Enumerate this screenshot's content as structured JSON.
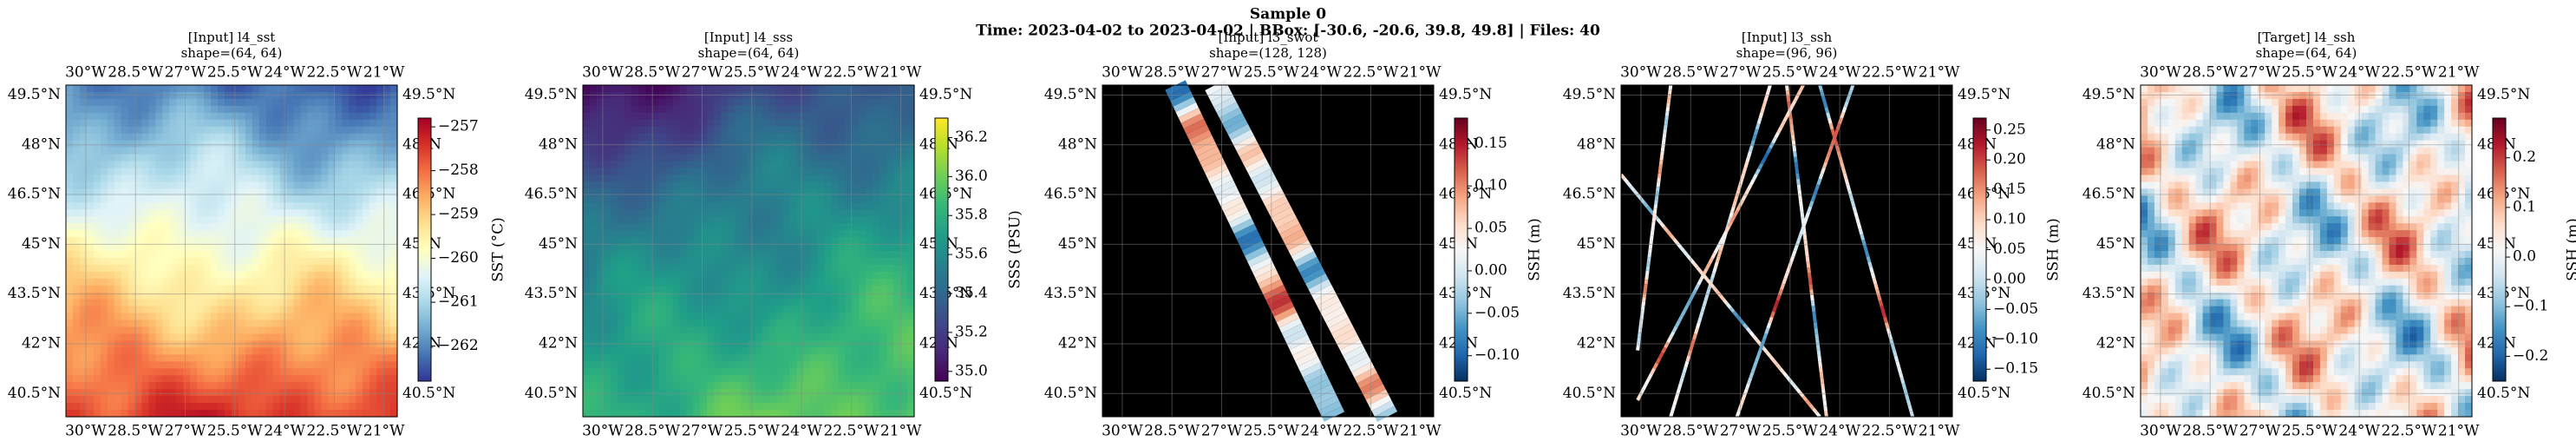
{
  "title": "Sample 0",
  "subtitle": "Time: 2023-04-02 to 2023-04-02 | BBox: [-30.6, -20.6, 39.8, 49.8] | Files: 40",
  "chart_data": [
    {
      "type": "heatmap",
      "title": "[Input] l4_sst",
      "subtitle": "shape=(64, 64)",
      "xlim": [
        -30.6,
        -20.6
      ],
      "ylim": [
        39.8,
        49.8
      ],
      "xticks": [
        {
          "value": -30,
          "label": "30°W"
        },
        {
          "value": -28.5,
          "label": "28.5°W"
        },
        {
          "value": -27,
          "label": "27°W"
        },
        {
          "value": -25.5,
          "label": "25.5°W"
        },
        {
          "value": -24,
          "label": "24°W"
        },
        {
          "value": -22.5,
          "label": "22.5°W"
        },
        {
          "value": -21,
          "label": "21°W"
        }
      ],
      "yticks": [
        {
          "value": 49.5,
          "label": "49.5°N"
        },
        {
          "value": 48,
          "label": "48°N"
        },
        {
          "value": 46.5,
          "label": "46.5°N"
        },
        {
          "value": 45,
          "label": "45°N"
        },
        {
          "value": 43.5,
          "label": "43.5°N"
        },
        {
          "value": 42,
          "label": "42°N"
        },
        {
          "value": 40.5,
          "label": "40.5°N"
        }
      ],
      "grid": true,
      "colorbar": {
        "label": "SST (°C)",
        "lim": [
          -262.8,
          -256.8
        ],
        "ticks": [
          {
            "value": -257,
            "label": "−257"
          },
          {
            "value": -258,
            "label": "−258"
          },
          {
            "value": -259,
            "label": "−259"
          },
          {
            "value": -260,
            "label": "−260"
          },
          {
            "value": -261,
            "label": "−261"
          },
          {
            "value": -262,
            "label": "−262"
          }
        ],
        "colors": [
          "#313695",
          "#4575b4",
          "#74add1",
          "#abd9e9",
          "#e0f3f8",
          "#ffffbf",
          "#fee090",
          "#fdae61",
          "#f46d43",
          "#d73027",
          "#a50026"
        ]
      }
    },
    {
      "type": "heatmap",
      "title": "[Input] l4_sss",
      "subtitle": "shape=(64, 64)",
      "xlim": [
        -30.6,
        -20.6
      ],
      "ylim": [
        39.8,
        49.8
      ],
      "xticks": [
        {
          "value": -30,
          "label": "30°W"
        },
        {
          "value": -28.5,
          "label": "28.5°W"
        },
        {
          "value": -27,
          "label": "27°W"
        },
        {
          "value": -25.5,
          "label": "25.5°W"
        },
        {
          "value": -24,
          "label": "24°W"
        },
        {
          "value": -22.5,
          "label": "22.5°W"
        },
        {
          "value": -21,
          "label": "21°W"
        }
      ],
      "yticks": [
        {
          "value": 49.5,
          "label": "49.5°N"
        },
        {
          "value": 48,
          "label": "48°N"
        },
        {
          "value": 46.5,
          "label": "46.5°N"
        },
        {
          "value": 45,
          "label": "45°N"
        },
        {
          "value": 43.5,
          "label": "43.5°N"
        },
        {
          "value": 42,
          "label": "42°N"
        },
        {
          "value": 40.5,
          "label": "40.5°N"
        }
      ],
      "grid": true,
      "colorbar": {
        "label": "SSS (PSU)",
        "lim": [
          34.95,
          36.3
        ],
        "ticks": [
          {
            "value": 35.0,
            "label": "35.0"
          },
          35.2,
          35.4,
          35.6,
          35.8,
          {
            "value": 36.0,
            "label": "36.0"
          },
          36.2
        ],
        "colors": [
          "#440154",
          "#482878",
          "#3e4989",
          "#31688e",
          "#26828e",
          "#1f9e89",
          "#35b779",
          "#6ece58",
          "#b5de2b",
          "#fde725"
        ]
      }
    },
    {
      "type": "heatmap",
      "title": "[Input] l3_swot",
      "subtitle": "shape=(128, 128)",
      "xlim": [
        -30.6,
        -20.6
      ],
      "ylim": [
        39.8,
        49.8
      ],
      "xticks": [
        {
          "value": -30,
          "label": "30°W"
        },
        {
          "value": -28.5,
          "label": "28.5°W"
        },
        {
          "value": -27,
          "label": "27°W"
        },
        {
          "value": -25.5,
          "label": "25.5°W"
        },
        {
          "value": -24,
          "label": "24°W"
        },
        {
          "value": -22.5,
          "label": "22.5°W"
        },
        {
          "value": -21,
          "label": "21°W"
        }
      ],
      "yticks": [
        {
          "value": 49.5,
          "label": "49.5°N"
        },
        {
          "value": 48,
          "label": "48°N"
        },
        {
          "value": 46.5,
          "label": "46.5°N"
        },
        {
          "value": 45,
          "label": "45°N"
        },
        {
          "value": 43.5,
          "label": "43.5°N"
        },
        {
          "value": 42,
          "label": "42°N"
        },
        {
          "value": 40.5,
          "label": "40.5°N"
        }
      ],
      "grid": true,
      "colorbar": {
        "label": "SSH (m)",
        "lim": [
          -0.13,
          0.18
        ],
        "ticks": [
          {
            "value": 0.15,
            "label": "0.15"
          },
          {
            "value": 0.1,
            "label": "0.10"
          },
          {
            "value": 0.05,
            "label": "0.05"
          },
          {
            "value": 0,
            "label": "0.00"
          },
          {
            "value": -0.05,
            "label": "−0.05"
          },
          {
            "value": -0.1,
            "label": "−0.10"
          }
        ],
        "colors": [
          "#053061",
          "#2166ac",
          "#4393c3",
          "#92c5de",
          "#d1e5f0",
          "#f7f7f7",
          "#fddbc7",
          "#f4a582",
          "#d6604d",
          "#b2182b",
          "#67001f"
        ]
      }
    },
    {
      "type": "heatmap",
      "title": "[Input] l3_ssh",
      "subtitle": "shape=(96, 96)",
      "xlim": [
        -30.6,
        -20.6
      ],
      "ylim": [
        39.8,
        49.8
      ],
      "xticks": [
        {
          "value": -30,
          "label": "30°W"
        },
        {
          "value": -28.5,
          "label": "28.5°W"
        },
        {
          "value": -27,
          "label": "27°W"
        },
        {
          "value": -25.5,
          "label": "25.5°W"
        },
        {
          "value": -24,
          "label": "24°W"
        },
        {
          "value": -22.5,
          "label": "22.5°W"
        },
        {
          "value": -21,
          "label": "21°W"
        }
      ],
      "yticks": [
        {
          "value": 49.5,
          "label": "49.5°N"
        },
        {
          "value": 48,
          "label": "48°N"
        },
        {
          "value": 46.5,
          "label": "46.5°N"
        },
        {
          "value": 45,
          "label": "45°N"
        },
        {
          "value": 43.5,
          "label": "43.5°N"
        },
        {
          "value": 42,
          "label": "42°N"
        },
        {
          "value": 40.5,
          "label": "40.5°N"
        }
      ],
      "grid": true,
      "colorbar": {
        "label": "SSH (m)",
        "lim": [
          -0.17,
          0.27
        ],
        "ticks": [
          {
            "value": 0.25,
            "label": "0.25"
          },
          {
            "value": 0.2,
            "label": "0.20"
          },
          {
            "value": 0.15,
            "label": "0.15"
          },
          {
            "value": 0.1,
            "label": "0.10"
          },
          {
            "value": 0.05,
            "label": "0.05"
          },
          {
            "value": 0,
            "label": "0.00"
          },
          {
            "value": -0.05,
            "label": "−0.05"
          },
          {
            "value": -0.1,
            "label": "−0.10"
          },
          {
            "value": -0.15,
            "label": "−0.15"
          }
        ],
        "colors": [
          "#053061",
          "#2166ac",
          "#4393c3",
          "#92c5de",
          "#d1e5f0",
          "#f7f7f7",
          "#fddbc7",
          "#f4a582",
          "#d6604d",
          "#b2182b",
          "#67001f"
        ]
      }
    },
    {
      "type": "heatmap",
      "title": "[Target] l4_ssh",
      "subtitle": "shape=(64, 64)",
      "xlim": [
        -30.6,
        -20.6
      ],
      "ylim": [
        39.8,
        49.8
      ],
      "xticks": [
        {
          "value": -30,
          "label": "30°W"
        },
        {
          "value": -28.5,
          "label": "28.5°W"
        },
        {
          "value": -27,
          "label": "27°W"
        },
        {
          "value": -25.5,
          "label": "25.5°W"
        },
        {
          "value": -24,
          "label": "24°W"
        },
        {
          "value": -22.5,
          "label": "22.5°W"
        },
        {
          "value": -21,
          "label": "21°W"
        }
      ],
      "yticks": [
        {
          "value": 49.5,
          "label": "49.5°N"
        },
        {
          "value": 48,
          "label": "48°N"
        },
        {
          "value": 46.5,
          "label": "46.5°N"
        },
        {
          "value": 45,
          "label": "45°N"
        },
        {
          "value": 43.5,
          "label": "43.5°N"
        },
        {
          "value": 42,
          "label": "42°N"
        },
        {
          "value": 40.5,
          "label": "40.5°N"
        }
      ],
      "grid": true,
      "colorbar": {
        "label": "SSH (m)",
        "lim": [
          -0.25,
          0.28
        ],
        "ticks": [
          {
            "value": 0.2,
            "label": "0.2"
          },
          {
            "value": 0.1,
            "label": "0.1"
          },
          {
            "value": 0,
            "label": "0.0"
          },
          {
            "value": -0.1,
            "label": "−0.1"
          },
          {
            "value": -0.2,
            "label": "−0.2"
          }
        ],
        "colors": [
          "#053061",
          "#2166ac",
          "#4393c3",
          "#92c5de",
          "#d1e5f0",
          "#f7f7f7",
          "#fddbc7",
          "#f4a582",
          "#d6604d",
          "#b2182b",
          "#67001f"
        ]
      }
    }
  ]
}
